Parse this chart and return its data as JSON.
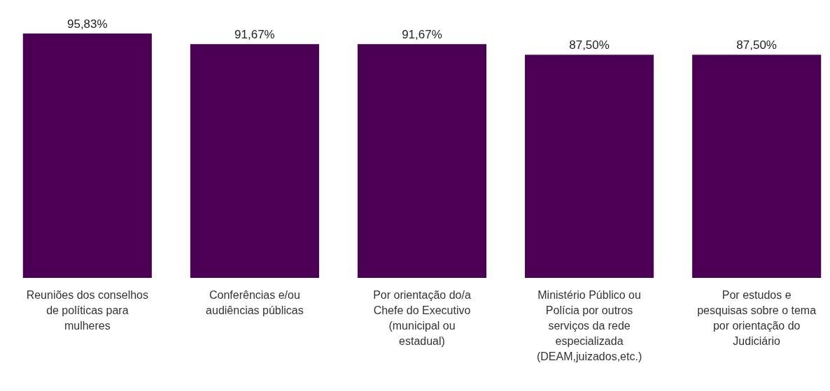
{
  "chart_data": {
    "type": "bar",
    "categories": [
      "Reuniões dos conselhos de políticas para mulheres",
      "Conferências e/ou audiências públicas",
      "Por orientação do/a Chefe do Executivo (municipal ou estadual)",
      "Ministério Público ou Polícia por outros serviços da rede especializada (DEAM,juizados,etc.)",
      "Por estudos e pesquisas sobre o tema por orientação do Judiciário"
    ],
    "values": [
      95.83,
      91.67,
      91.67,
      87.5,
      87.5
    ],
    "value_labels": [
      "95,83%",
      "91,67%",
      "91,67%",
      "87,50%",
      "87,50%"
    ],
    "color": "#4b0055"
  }
}
